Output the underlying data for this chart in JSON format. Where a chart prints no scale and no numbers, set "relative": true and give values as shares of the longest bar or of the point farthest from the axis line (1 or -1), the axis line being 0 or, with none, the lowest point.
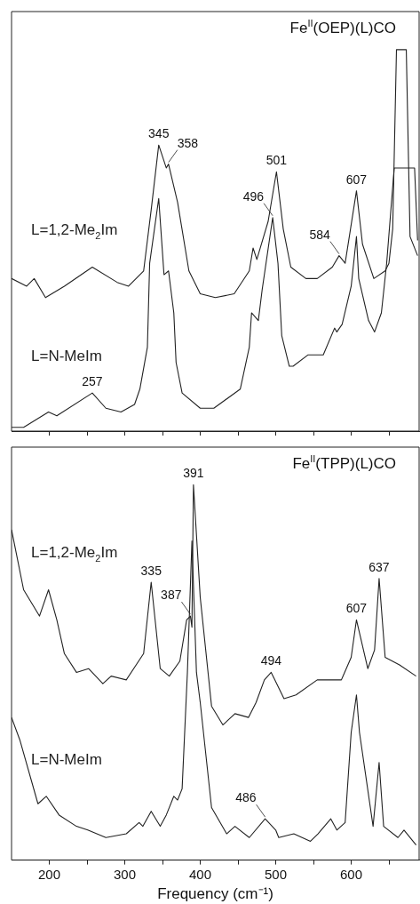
{
  "chart_data": [
    {
      "type": "line",
      "title": "Fe$^{II}$(OEP)(L)CO",
      "relative": true,
      "xlim": [
        150,
        690
      ],
      "xticks": [
        200,
        {
          "value": 250,
          "label": null
        },
        300,
        {
          "value": 350,
          "label": null
        },
        400,
        {
          "value": 450,
          "label": null
        },
        500,
        {
          "value": 550,
          "label": null
        },
        600,
        {
          "value": 650,
          "label": null
        }
      ],
      "tick_labels": false,
      "series": [
        {
          "name": "L=1,2-Me$_{2}$Im",
          "color": "#222222",
          "x": [
            150,
            170,
            180,
            195,
            220,
            257,
            290,
            305,
            325,
            335,
            345,
            355,
            358,
            370,
            385,
            400,
            420,
            445,
            465,
            470,
            475,
            490,
            501,
            510,
            520,
            540,
            555,
            575,
            584,
            592,
            607,
            615,
            630,
            645,
            650,
            655,
            660,
            673,
            678,
            688
          ],
          "values": [
            0.4,
            0.38,
            0.4,
            0.35,
            0.38,
            0.43,
            0.39,
            0.38,
            0.42,
            0.58,
            0.75,
            0.69,
            0.7,
            0.6,
            0.42,
            0.36,
            0.35,
            0.36,
            0.42,
            0.48,
            0.45,
            0.55,
            0.68,
            0.53,
            0.43,
            0.4,
            0.4,
            0.43,
            0.46,
            0.44,
            0.63,
            0.49,
            0.4,
            0.42,
            0.44,
            0.53,
            1,
            1,
            0.51,
            0.46
          ]
        },
        {
          "name": "L=N-MeIm",
          "color": "#222222",
          "x": [
            150,
            166,
            199,
            210,
            257,
            275,
            295,
            313,
            320,
            330,
            333,
            345,
            352,
            358,
            365,
            368,
            376,
            400,
            418,
            453,
            465,
            468,
            477,
            482,
            496,
            503,
            508,
            518,
            523,
            543,
            563,
            578,
            581,
            588,
            600,
            607,
            610,
            623,
            631,
            640,
            647,
            657,
            684,
            688
          ],
          "values": [
            0.01,
            0.01,
            0.05,
            0.04,
            0.1,
            0.06,
            0.05,
            0.07,
            0.11,
            0.22,
            0.44,
            0.61,
            0.41,
            0.42,
            0.31,
            0.18,
            0.1,
            0.06,
            0.06,
            0.11,
            0.22,
            0.31,
            0.29,
            0.37,
            0.56,
            0.44,
            0.25,
            0.17,
            0.17,
            0.2,
            0.2,
            0.27,
            0.26,
            0.28,
            0.38,
            0.51,
            0.4,
            0.29,
            0.26,
            0.31,
            0.44,
            0.69,
            0.69,
            0.5
          ]
        }
      ],
      "annotations": [
        {
          "text": "345",
          "x": 345,
          "y": 0.75
        },
        {
          "text": "358",
          "x": 358,
          "y": 0.7
        },
        {
          "text": "501",
          "x": 501,
          "y": 0.68
        },
        {
          "text": "496",
          "x": 496,
          "y": 0.56
        },
        {
          "text": "607",
          "x": 607,
          "y": 0.63
        },
        {
          "text": "584",
          "x": 584,
          "y": 0.46
        },
        {
          "text": "257",
          "x": 257,
          "y": 0.1
        }
      ]
    },
    {
      "type": "line",
      "title": "Fe$^{II}$(TPP)(L)CO",
      "xlabel": "Frequency (cm⁻¹)",
      "relative": true,
      "xlim": [
        150,
        690
      ],
      "xticks": [
        200,
        {
          "value": 250,
          "label": null
        },
        300,
        {
          "value": 350,
          "label": null
        },
        400,
        {
          "value": 450,
          "label": null
        },
        500,
        {
          "value": 550,
          "label": null
        },
        600,
        {
          "value": 650,
          "label": null
        }
      ],
      "tick_labels": "x",
      "series": [
        {
          "name": "L=1,2-Me$_{2}$Im",
          "color": "#222222",
          "x": [
            150,
            166,
            187,
            199,
            210,
            220,
            236,
            252,
            271,
            282,
            302,
            325,
            335,
            347,
            359,
            373,
            382,
            387,
            389,
            391,
            400,
            415,
            430,
            446,
            464,
            474,
            485,
            494,
            511,
            527,
            555,
            569,
            587,
            600,
            607,
            622,
            631,
            637,
            645,
            664,
            686
          ],
          "values": [
            0.88,
            0.72,
            0.65,
            0.72,
            0.64,
            0.55,
            0.5,
            0.51,
            0.47,
            0.49,
            0.48,
            0.55,
            0.74,
            0.51,
            0.49,
            0.53,
            0.64,
            0.65,
            0.62,
            1,
            0.7,
            0.41,
            0.36,
            0.39,
            0.38,
            0.42,
            0.48,
            0.5,
            0.43,
            0.44,
            0.48,
            0.48,
            0.48,
            0.54,
            0.64,
            0.51,
            0.56,
            0.75,
            0.54,
            0.52,
            0.49
          ]
        },
        {
          "name": "L=N-MeIm",
          "color": "#222222",
          "x": [
            150,
            161,
            185,
            196,
            213,
            236,
            251,
            275,
            302,
            319,
            324,
            335,
            347,
            355,
            365,
            370,
            376,
            383,
            389,
            395,
            400,
            415,
            435,
            446,
            465,
            486,
            500,
            504,
            524,
            546,
            556,
            573,
            581,
            592,
            600,
            607,
            611,
            629,
            637,
            643,
            662,
            670,
            686
          ],
          "values": [
            0.38,
            0.32,
            0.15,
            0.17,
            0.12,
            0.09,
            0.08,
            0.06,
            0.07,
            0.1,
            0.09,
            0.13,
            0.09,
            0.12,
            0.17,
            0.16,
            0.19,
            0.5,
            0.85,
            0.5,
            0.42,
            0.14,
            0.07,
            0.09,
            0.06,
            0.11,
            0.08,
            0.06,
            0.07,
            0.05,
            0.07,
            0.11,
            0.08,
            0.1,
            0.34,
            0.44,
            0.34,
            0.09,
            0.26,
            0.09,
            0.06,
            0.08,
            0.04
          ]
        }
      ],
      "annotations": [
        {
          "text": "391",
          "x": 391,
          "y": 1
        },
        {
          "text": "335",
          "x": 335,
          "y": 0.74
        },
        {
          "text": "387",
          "x": 387,
          "y": 0.65
        },
        {
          "text": "494",
          "x": 494,
          "y": 0.5
        },
        {
          "text": "607",
          "x": 607,
          "y": 0.64
        },
        {
          "text": "637",
          "x": 637,
          "y": 0.75
        },
        {
          "text": "486",
          "x": 486,
          "y": 0.11
        }
      ]
    }
  ]
}
